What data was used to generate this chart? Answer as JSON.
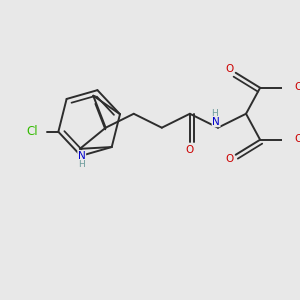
{
  "bg_color": "#e8e8e8",
  "bond_color": "#2d2d2d",
  "bond_lw": 1.4,
  "atom_colors": {
    "O": "#cc0000",
    "N": "#0000cc",
    "Cl": "#33bb00",
    "H_light": "#6a9a9a",
    "C": "#2d2d2d"
  },
  "font_size_atom": 7.5,
  "font_size_h": 6.5
}
